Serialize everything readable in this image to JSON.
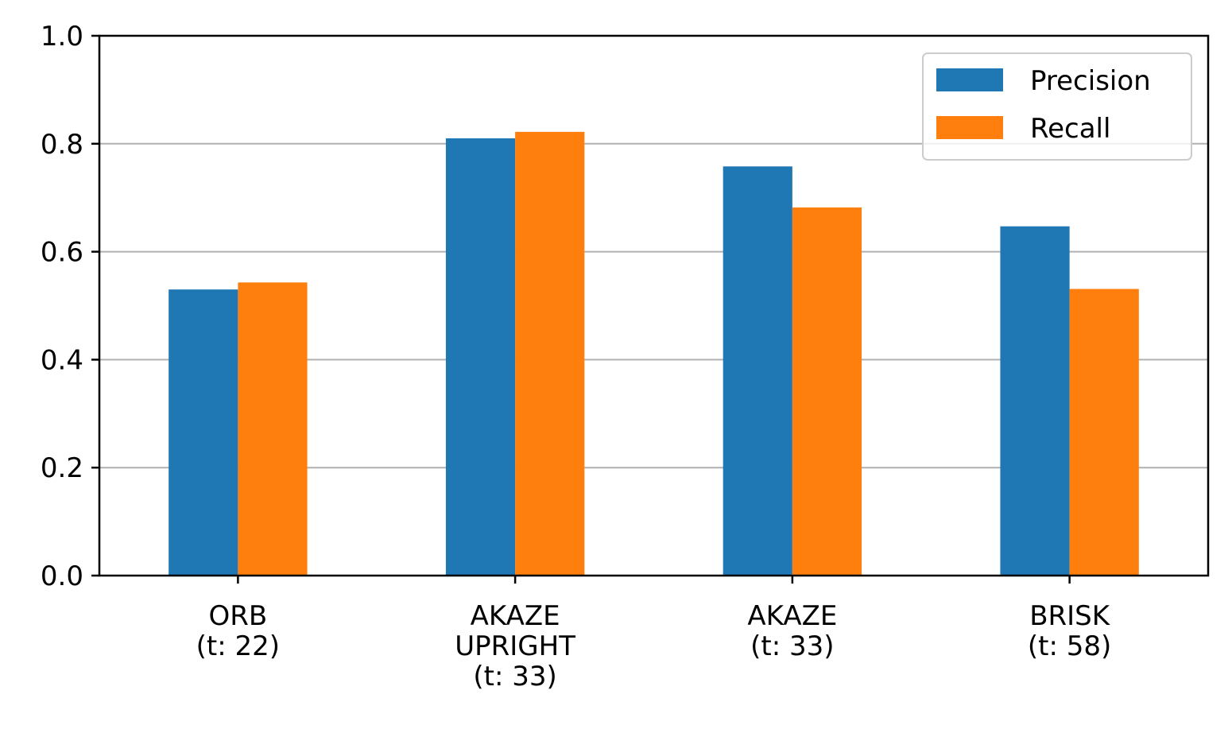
{
  "chart_data": {
    "type": "bar",
    "categories": [
      [
        "ORB",
        "(t: 22)"
      ],
      [
        "AKAZE",
        "UPRIGHT",
        "(t: 33)"
      ],
      [
        "AKAZE",
        "(t: 33)"
      ],
      [
        "BRISK",
        "(t: 58)"
      ]
    ],
    "series": [
      {
        "name": "Precision",
        "color": "#1f77b4",
        "values": [
          0.53,
          0.81,
          0.758,
          0.647
        ]
      },
      {
        "name": "Recall",
        "color": "#ff7f0e",
        "values": [
          0.543,
          0.822,
          0.682,
          0.531
        ]
      }
    ],
    "ylim": [
      0,
      1.0
    ],
    "yticks": [
      "0.0",
      "0.2",
      "0.4",
      "0.6",
      "0.8",
      "1.0"
    ],
    "grid": "y",
    "legend": "top-right",
    "title": "",
    "xlabel": "",
    "ylabel": ""
  }
}
